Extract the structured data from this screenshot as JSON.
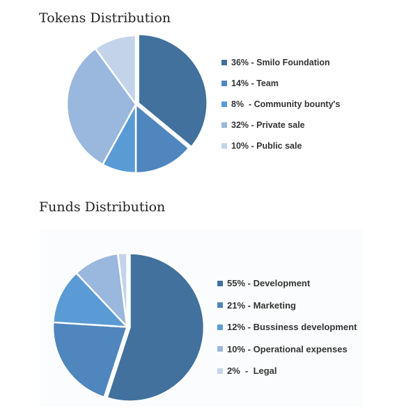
{
  "chart_data": [
    {
      "type": "pie",
      "title": "Tokens Distribution",
      "categories": [
        "Smilo Foundation",
        "Team",
        "Community bounty's",
        "Private sale",
        "Public sale"
      ],
      "values": [
        36,
        14,
        8,
        32,
        10
      ],
      "labels": [
        "36% - Smilo Foundation",
        "14% - Team",
        "8%  - Community bounty's",
        "32% - Private sale",
        "10% - Public sale"
      ],
      "colors": [
        "#41719c",
        "#4f86bd",
        "#5a9bd5",
        "#9ab7dd",
        "#c3d4ea"
      ],
      "explode": [
        true,
        false,
        false,
        false,
        false
      ],
      "legend": "right"
    },
    {
      "type": "pie",
      "title": "Funds Distribution",
      "categories": [
        "Development",
        "Marketing",
        "Bussiness development",
        "Operational expenses",
        "Legal"
      ],
      "values": [
        55,
        21,
        12,
        10,
        2
      ],
      "labels": [
        "55% - Development",
        "21% - Marketing",
        "12% - Bussiness development",
        "10% - Operational expenses",
        "2%  -  Legal"
      ],
      "colors": [
        "#41719c",
        "#4f86bd",
        "#5a9bd5",
        "#9ab7dd",
        "#c3d4ea"
      ],
      "explode": [
        true,
        false,
        false,
        false,
        false
      ],
      "legend": "right"
    }
  ]
}
